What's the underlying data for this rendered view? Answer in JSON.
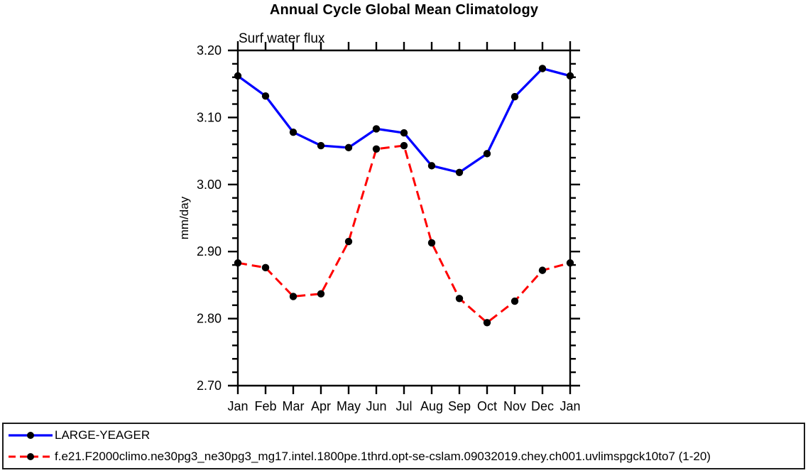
{
  "chart_data": {
    "type": "line",
    "title": "Annual Cycle Global Mean Climatology",
    "subtitle": "Surf water flux",
    "xlabel": "",
    "ylabel": "mm/day",
    "categories": [
      "Jan",
      "Feb",
      "Mar",
      "Apr",
      "May",
      "Jun",
      "Jul",
      "Aug",
      "Sep",
      "Oct",
      "Nov",
      "Dec",
      "Jan"
    ],
    "y_axis": {
      "min": 2.7,
      "max": 3.2,
      "major_step": 0.1,
      "minor_step": 0.02,
      "tick_labels": [
        "2.70",
        "2.80",
        "2.90",
        "3.00",
        "3.10",
        "3.20"
      ]
    },
    "grid": false,
    "legend_position": "bottom-box",
    "axis_color": "#000000",
    "series": [
      {
        "name": "LARGE-YEAGER",
        "color": "#0000ff",
        "line_style": "solid",
        "marker": "filled-circle",
        "marker_color": "#000000",
        "values": [
          3.162,
          3.132,
          3.078,
          3.058,
          3.055,
          3.083,
          3.077,
          3.028,
          3.018,
          3.046,
          3.131,
          3.173,
          3.162
        ]
      },
      {
        "name": "f.e21.F2000climo.ne30pg3_ne30pg3_mg17.intel.1800pe.1thrd.opt-se-cslam.09032019.chey.ch001.uvlimspgck10to7 (1-20)",
        "color": "#ff0000",
        "line_style": "dashed",
        "marker": "filled-circle",
        "marker_color": "#000000",
        "values": [
          2.883,
          2.876,
          2.833,
          2.837,
          2.915,
          3.053,
          3.058,
          2.913,
          2.83,
          2.794,
          2.826,
          2.872,
          2.883
        ]
      }
    ]
  }
}
